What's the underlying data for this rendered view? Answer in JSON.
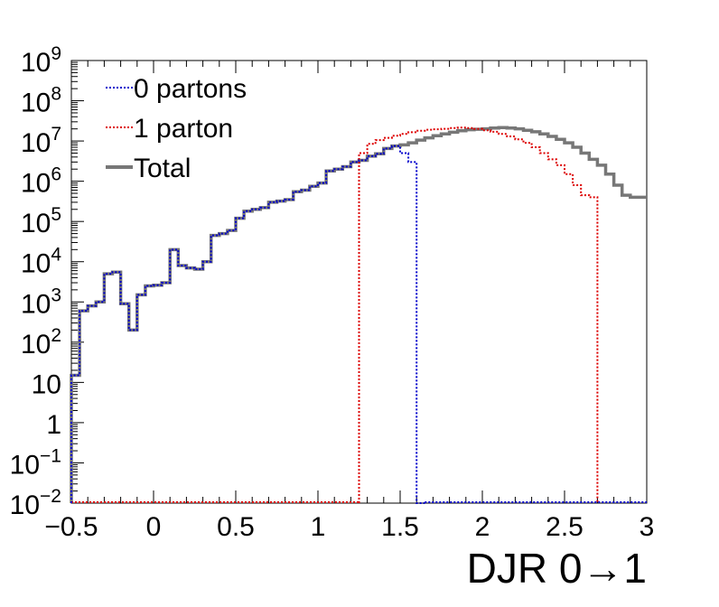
{
  "chart_data": {
    "type": "histogram",
    "title": "",
    "xlabel": "DJR 0→1",
    "ylabel": "",
    "xlim": [
      -0.5,
      3
    ],
    "ylim": [
      0.01,
      1000000000
    ],
    "y_scale": "log",
    "grid": false,
    "legend_position": "top-left",
    "x_ticks": [
      "−0.5",
      "0",
      "0.5",
      "1",
      "1.5",
      "2",
      "2.5",
      "3"
    ],
    "y_ticks": [
      {
        "base": "10",
        "exp": "−2"
      },
      {
        "base": "10",
        "exp": "−1"
      },
      {
        "base": "1",
        "exp": ""
      },
      {
        "base": "10",
        "exp": ""
      },
      {
        "base": "10",
        "exp": "2"
      },
      {
        "base": "10",
        "exp": "3"
      },
      {
        "base": "10",
        "exp": "4"
      },
      {
        "base": "10",
        "exp": "5"
      },
      {
        "base": "10",
        "exp": "6"
      },
      {
        "base": "10",
        "exp": "7"
      },
      {
        "base": "10",
        "exp": "8"
      },
      {
        "base": "10",
        "exp": "9"
      }
    ],
    "bin_width": 0.05,
    "series": [
      {
        "name": "0 partons",
        "color": "#0000cc",
        "style": "dotted",
        "bins_start": -0.5,
        "values": [
          15,
          600,
          800,
          1000,
          5000,
          5500,
          900,
          200,
          1500,
          2500,
          2600,
          3000,
          20000,
          8000,
          7000,
          6500,
          10000,
          45000,
          50000,
          60000,
          120000,
          180000,
          200000,
          220000,
          300000,
          320000,
          350000,
          550000,
          600000,
          750000,
          900000,
          1800000,
          2000000,
          2300000,
          3000000,
          3300000,
          4200000,
          4800000,
          6500000,
          7500000,
          5000000,
          3000000,
          0.01
        ]
      },
      {
        "name": "1 parton",
        "color": "#dd0000",
        "style": "dotted",
        "bins_start": 1.25,
        "values": [
          5000000,
          8500000,
          10500000,
          12000000,
          13500000,
          15000000,
          16500000,
          18000000,
          19000000,
          19500000,
          20000000,
          21000000,
          21500000,
          21000000,
          20000000,
          18500000,
          17000000,
          15000000,
          13000000,
          11000000,
          9000000,
          7000000,
          5000000,
          3500000,
          2500000,
          1500000,
          800000,
          450000,
          400000
        ]
      },
      {
        "name": "Total",
        "color": "#777777",
        "style": "solid",
        "bins_start": -0.5,
        "values": [
          15,
          600,
          800,
          1000,
          5000,
          5500,
          900,
          200,
          1500,
          2500,
          2600,
          3000,
          20000,
          8000,
          7000,
          6500,
          10000,
          45000,
          50000,
          60000,
          120000,
          180000,
          200000,
          220000,
          300000,
          320000,
          350000,
          550000,
          600000,
          750000,
          900000,
          1800000,
          2000000,
          2300000,
          3000000,
          3300000,
          4200000,
          4800000,
          6500000,
          7500000,
          8000000,
          9000000,
          10500000,
          12000000,
          13500000,
          15000000,
          16500000,
          18000000,
          19000000,
          19500000,
          20000000,
          21000000,
          21500000,
          21000000,
          20000000,
          18500000,
          17000000,
          15000000,
          13000000,
          11000000,
          9000000,
          7000000,
          5000000,
          3500000,
          2500000,
          1500000,
          800000,
          450000,
          400000,
          400000
        ]
      }
    ]
  }
}
